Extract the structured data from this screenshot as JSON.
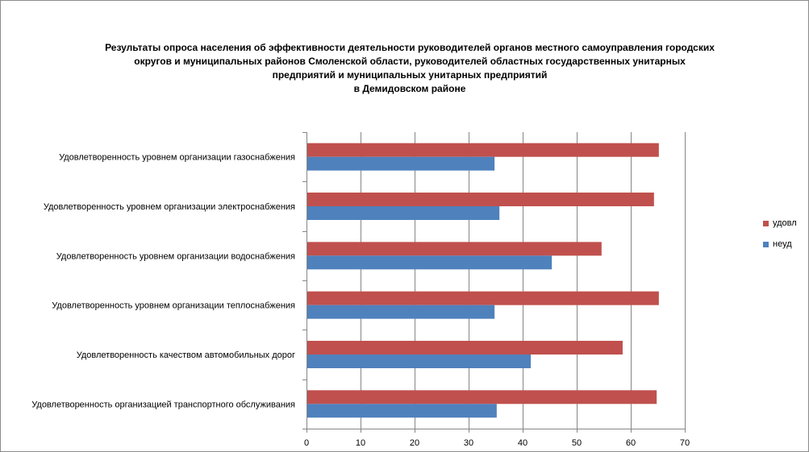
{
  "chart_data": {
    "type": "bar",
    "orientation": "horizontal",
    "title_lines": [
      "Результаты опроса населения об эффективности деятельности руководителей органов местного самоуправления городских",
      "округов и муниципальных районов Смоленской области, руководителей областных государственных унитарных",
      "предприятий и муниципальных унитарных предприятий",
      "в Демидовском районе"
    ],
    "categories": [
      "Удовлетворенность  уровнем  организации газоснабжения",
      "Удовлетворенность  уровнем  организации электроснабжения",
      "Удовлетворенность  уровнем  организации водоснабжения",
      "Удовлетворенность  уровнем  организации теплоснабжения",
      "Удовлетворенность  качеством  автомобильных дорог",
      "Удовлетворенность  организацией  транспортного обслуживания"
    ],
    "series": [
      {
        "name": "удовл",
        "color": "#c0504d",
        "values": [
          65.2,
          64.3,
          54.6,
          65.2,
          58.5,
          64.8
        ]
      },
      {
        "name": "неуд",
        "color": "#4f81bd",
        "values": [
          34.8,
          35.7,
          45.4,
          34.8,
          41.5,
          35.2
        ]
      }
    ],
    "xlim": [
      0,
      70
    ],
    "x_ticks": [
      "0",
      "10",
      "20",
      "30",
      "40",
      "50",
      "60",
      "70"
    ],
    "grid": true,
    "legend_position": "right"
  }
}
